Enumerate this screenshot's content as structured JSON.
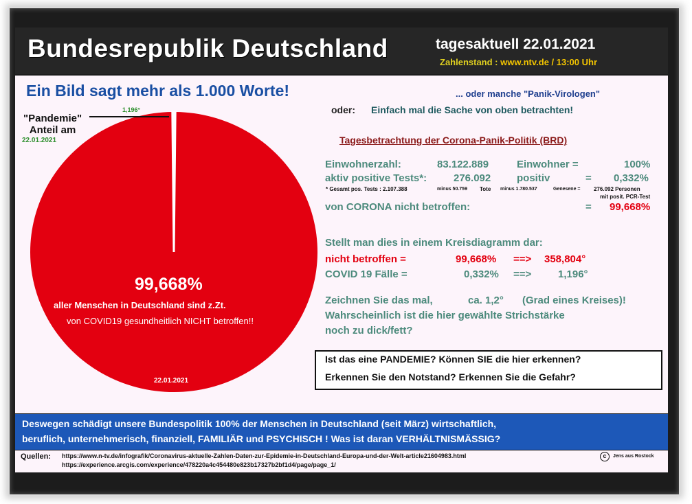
{
  "header": {
    "title": "Bundesrepublik  Deutschland",
    "date_line": "tagesaktuell 22.01.2021",
    "source_label": "Zahlenstand :",
    "source_value": "www.ntv.de / 13:00 Uhr"
  },
  "slogan": "Ein Bild sagt mehr als 1.000 Worte!",
  "subtitle1": "... oder manche \"Panik-Virologen\"",
  "subtitle2_label": "oder:",
  "subtitle2": "Einfach mal die Sache von oben betrachten!",
  "pie_annotation": {
    "label": "\"Pandemie\"\nAnteil am",
    "date": "22.01.2021",
    "degree": "1,196°"
  },
  "pie_text": {
    "percent": "99,668%",
    "line1": "aller Menschen in Deutschland sind z.Zt.",
    "line2": "von COVID19 gesundheitlich NICHT betroffen!!",
    "date": "22.01.2021"
  },
  "colors": {
    "pie_main": "#e30010",
    "pie_slice": "#ffffff",
    "accent_blue": "#1d58b8",
    "stat_teal": "#4c8a7c"
  },
  "chart_data": {
    "type": "pie",
    "slices": [
      {
        "label": "nicht betroffen",
        "value": 99.668,
        "degrees": 358.804
      },
      {
        "label": "COVID 19 Fälle",
        "value": 0.332,
        "degrees": 1.196
      }
    ]
  },
  "stats": {
    "title": "Tagesbetrachtung der Corona-Panik-Politik (BRD)",
    "row1": {
      "label": "Einwohnerzahl:",
      "value": "83.122.889",
      "unit": "Einwohner =",
      "pct": "100%"
    },
    "row2": {
      "label": "aktiv positive Tests*:",
      "value": "276.092",
      "unit": "positiv",
      "eq": "=",
      "pct": "0,332%"
    },
    "footnote": {
      "a": "* Gesamt pos. Tests : 2.107.388",
      "b": "minus 50.759",
      "c": "Tote",
      "d": "minus 1.780.537",
      "e": "Genesene =",
      "f": "276.092 Personen",
      "g": "mit posit. PCR-Test"
    },
    "row3": {
      "label": "von CORONA nicht betroffen:",
      "eq": "=",
      "pct": "99,668%"
    }
  },
  "kreis": {
    "intro": "Stellt man dies in einem Kreisdiagramm dar:",
    "r1": {
      "label": "nicht betroffen =",
      "pct": "99,668%",
      "arrow": "==>",
      "deg": "358,804°"
    },
    "r2": {
      "label": "COVID 19 Fälle =",
      "pct": "0,332%",
      "arrow": "==>",
      "deg": "1,196°"
    }
  },
  "draw": {
    "l1a": "Zeichnen Sie das mal,",
    "l1b": "ca. 1,2°",
    "l1c": "(Grad eines Kreises)!",
    "l2": "Wahrscheinlich ist die hier gewählte Strichstärke",
    "l3": "noch zu dick/fett?"
  },
  "questions": {
    "q1": "Ist das eine PANDEMIE? Können SIE die hier erkennen?",
    "q2": "Erkennen Sie den Notstand? Erkennen Sie die Gefahr?"
  },
  "bottom": {
    "line1": "Deswegen schädigt unsere Bundespolitik 100% der Menschen in Deutschland (seit März) wirtschaftlich,",
    "line2": "beruflich, unternehmerisch, finanziell, FAMILIÄR und PSYCHISCH ! Was ist daran VERHÄLTNISMÄSSIG?"
  },
  "sources": {
    "label": "Quellen:",
    "url1": "https://www.n-tv.de/infografik/Coronavirus-aktuelle-Zahlen-Daten-zur-Epidemie-in-Deutschland-Europa-und-der-Welt-article21604983.html",
    "url2": "https://experience.arcgis.com/experience/478220a4c454480e823b17327b2bf1d4/page/page_1/",
    "copyright_symbol": "c",
    "copyright": "Jens aus Rostock"
  }
}
